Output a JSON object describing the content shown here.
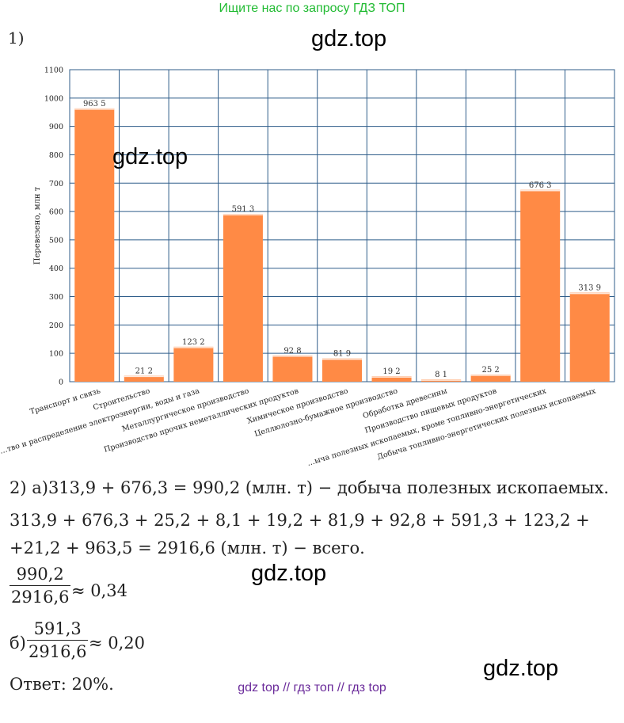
{
  "header": {
    "banner": "Ищите нас по запросу ГДЗ ТОП",
    "banner_color": "#22bb33"
  },
  "task": {
    "label": "1)"
  },
  "watermark": "gdz.top",
  "chart_data": {
    "type": "bar",
    "categories": [
      "Транспорт и связь",
      "Строительство",
      "…тво и распределение электроэнергии, воды и газа",
      "Металлургическое производство",
      "Производство прочих неметаллических продуктов",
      "Химическое производство",
      "Целлюлозно-бумажное производство",
      "Обработка древесины",
      "Производство пищевых продуктов",
      "…ыча полезных ископаемых, кроме топливно-энергетических",
      "Добыча топливно-энергетических полезных ископаемых"
    ],
    "values": [
      963.5,
      21.2,
      123.2,
      591.3,
      92.8,
      81.9,
      19.2,
      8.1,
      25.2,
      676.3,
      313.9
    ],
    "value_labels": [
      "963 5",
      "21 2",
      "123 2",
      "591 3",
      "92 8",
      "81 9",
      "19 2",
      "8 1",
      "25 2",
      "676 3",
      "313 9"
    ],
    "ylabel": "Перевезено, млн т",
    "ylim": [
      0,
      1100
    ],
    "yticks": [
      0,
      100,
      200,
      300,
      400,
      500,
      600,
      700,
      800,
      900,
      1000,
      1100
    ],
    "grid": true,
    "bar_color": "#ff8a45",
    "grid_color": "#2f5d8a"
  },
  "solution": {
    "line_a": "2) а)313,9 + 676,3 = 990,2 (млн. т) − добыча полезных ископаемых.",
    "line_sum1": "313,9 + 676,3 + 25,2 + 8,1 + 19,2 + 81,9 + 92,8 + 591,3 + 123,2 +",
    "line_sum2": "+21,2 + 963,5 = 2916,6 (млн. т) − всего.",
    "frac1_num": "990,2",
    "frac1_den": "2916,6",
    "frac1_result": "≈ 0,34",
    "b_label": "б)",
    "frac2_num": "591,3",
    "frac2_den": "2916,6",
    "frac2_result": "≈ 0,20",
    "answer": "Ответ: 20%."
  },
  "footer": {
    "text": "gdz top  //  гдз топ  //  гдз top",
    "color": "#6a2a9a"
  }
}
